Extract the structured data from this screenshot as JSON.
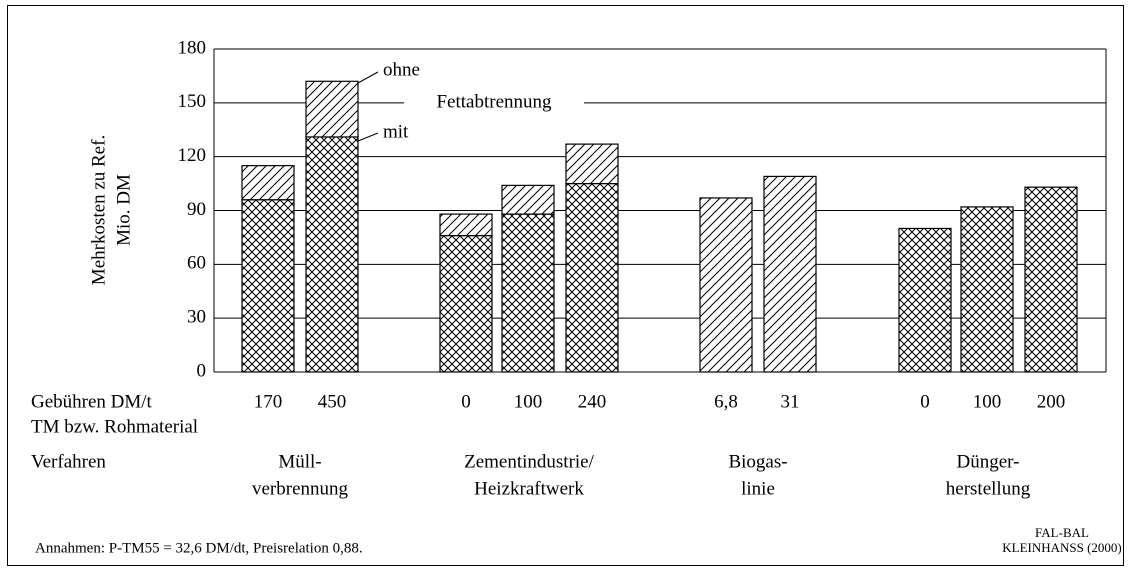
{
  "chart_data": {
    "type": "bar",
    "ylabel": [
      "Mehrkosten zu Ref.",
      "Mio. DM"
    ],
    "ylim": [
      0,
      180
    ],
    "yticks": [
      0,
      30,
      60,
      90,
      120,
      150,
      180
    ],
    "grid": true,
    "row_labels": [
      "Gebühren DM/t",
      "TM bzw. Rohmaterial",
      "Verfahren"
    ],
    "groups": [
      {
        "label": [
          "Müll-",
          "verbrennung"
        ],
        "categories": [
          "170",
          "450"
        ]
      },
      {
        "label": [
          "Zementindustrie/",
          "Heizkraftwerk"
        ],
        "categories": [
          "0",
          "100",
          "240"
        ]
      },
      {
        "label": [
          "Biogas-",
          "linie"
        ],
        "categories": [
          "6,8",
          "31"
        ]
      },
      {
        "label": [
          "Dünger-",
          "herstellung"
        ],
        "categories": [
          "0",
          "100",
          "200"
        ]
      }
    ],
    "legend_title": "Fettabtrennung",
    "series": [
      {
        "name": "mit",
        "pattern": "crosshatch",
        "values": [
          96,
          131,
          76,
          88,
          105,
          null,
          null,
          80,
          92,
          103
        ]
      },
      {
        "name": "ohne",
        "pattern": "diagonal",
        "values": [
          19,
          31,
          12,
          16,
          22,
          97,
          109,
          null,
          null,
          null
        ]
      }
    ],
    "note": "Annahmen: P-TM55 = 32,6 DM/dt, Preisrelation 0,88.",
    "source": [
      "FAL-BAL",
      "KLEINHANSS (2000)"
    ]
  }
}
